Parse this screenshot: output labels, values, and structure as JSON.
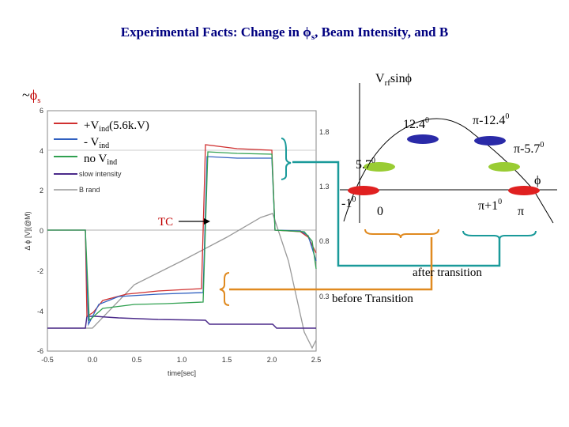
{
  "header": {
    "title_start": "Experimental Facts: Change in ",
    "title_phi": "ϕ",
    "title_sub": "s",
    "title_end": ", Beam Intensity, and B"
  },
  "plot": {
    "y_axis_label": "Δ ϕ [V](@M)",
    "x_axis_label": "time[sec]",
    "yticks": [
      "6",
      "4",
      "2",
      "0",
      "-2",
      "-4",
      "-6"
    ],
    "xticks": [
      "-0.5",
      "0.0",
      "0.5",
      "1.0",
      "1.5",
      "2.0",
      "2.5"
    ],
    "y2ticks": [
      "1.8",
      "1.3",
      "0.8",
      "0.3"
    ],
    "legend": {
      "plus_v": "+V",
      "plus_sub": "ind",
      "plus_rest": "(5.6k.V)",
      "minus_v": "- V",
      "minus_sub": "ind",
      "no_v": "no V",
      "no_sub": "ind",
      "slow": "slow intensity",
      "brand": "B rand"
    }
  },
  "annotations": {
    "phis_tilde": "~",
    "phis_phi": "ϕ",
    "phis_sub": "s",
    "vrf_v": "V",
    "vrf_sub": "rf",
    "vrf_sin": "sin",
    "vrf_phi": "ϕ",
    "deg_12": "12.4",
    "deg_pi_12": "π-12.4",
    "deg_pi_5": "π-5.7",
    "deg_5": "5.7",
    "deg_m1": "-1",
    "deg_pi_1": "π+1",
    "sup0": "0",
    "zero": "0",
    "phi_axis": "ϕ",
    "pi": "π",
    "tc": "TC",
    "after": "after transition",
    "before": "before Transition"
  }
}
